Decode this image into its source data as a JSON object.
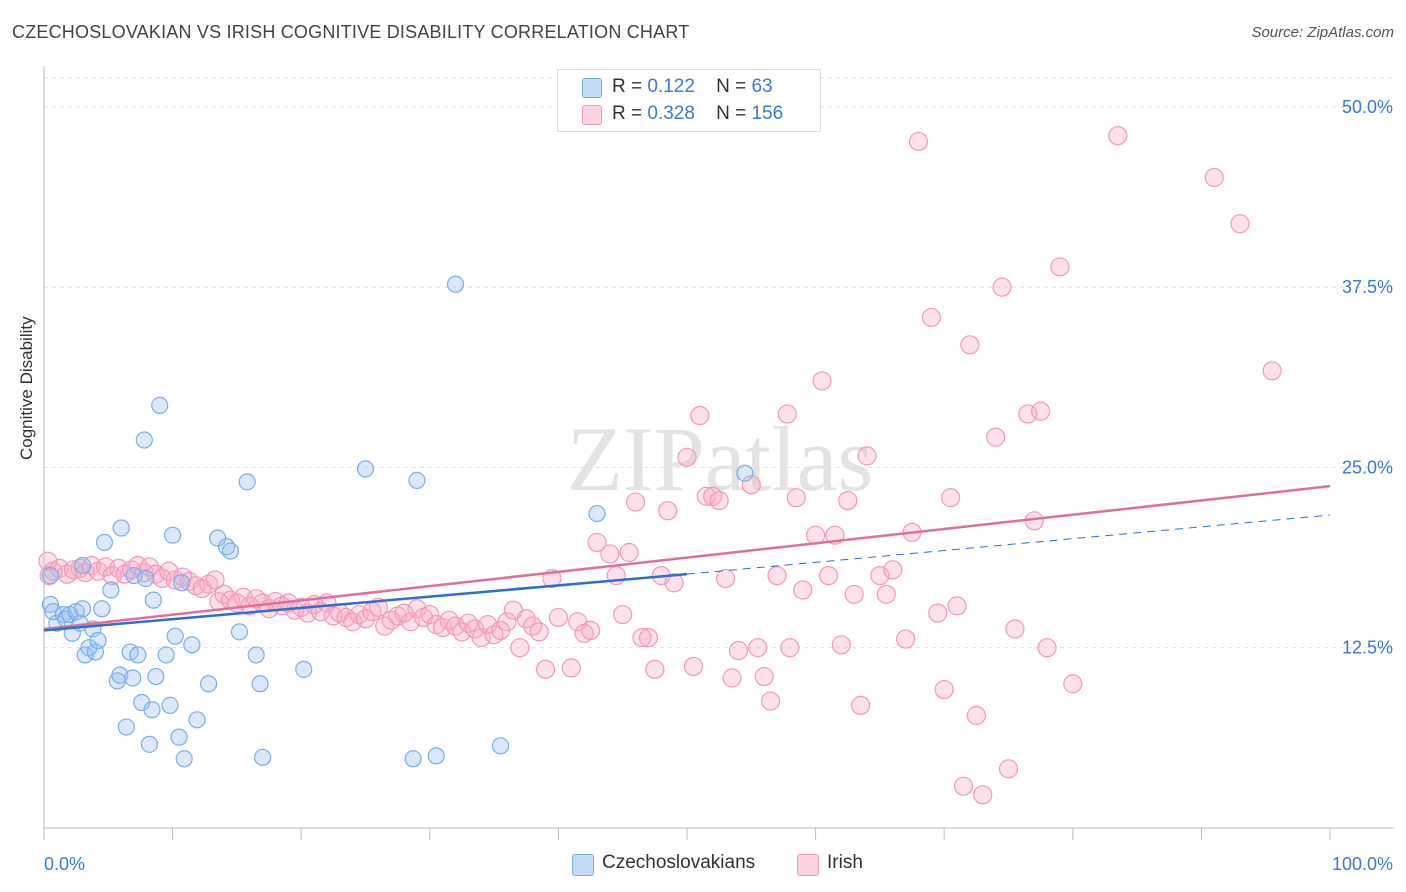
{
  "header": {
    "title": "CZECHOSLOVAKIAN VS IRISH COGNITIVE DISABILITY CORRELATION CHART",
    "source": "Source: ZipAtlas.com"
  },
  "watermark": "ZIPatlas",
  "legend": {
    "rows": [
      {
        "r_label": "R =",
        "r_value": "0.122",
        "n_label": "N =",
        "n_value": "63",
        "color": "#a8c8f0"
      },
      {
        "r_label": "R =",
        "r_value": "0.328",
        "n_label": "N =",
        "n_value": "156",
        "color": "#f5b8cc"
      }
    ]
  },
  "bottom_legend": [
    {
      "label": "Czechoslovakians",
      "color": "#a8c8f0"
    },
    {
      "label": "Irish",
      "color": "#f5b8cc"
    }
  ],
  "chart_data": {
    "type": "scatter",
    "title": "CZECHOSLOVAKIAN VS IRISH COGNITIVE DISABILITY CORRELATION CHART",
    "xlabel": "",
    "ylabel": "Cognitive Disability",
    "xlim": [
      0,
      100
    ],
    "ylim": [
      0,
      52
    ],
    "x_tick_labels": [
      "0.0%",
      "100.0%"
    ],
    "y_ticks": [
      12.5,
      25.0,
      37.5,
      50.0
    ],
    "y_tick_labels": [
      "12.5%",
      "25.0%",
      "37.5%",
      "50.0%"
    ],
    "grid": "horizontal dashed",
    "colors": {
      "czech": "#7aaee8",
      "irish": "#f09ab8",
      "czech_line": "#2f6fd0",
      "irish_line": "#e0709a",
      "tick_label": "#3a7bd5"
    },
    "series": [
      {
        "name": "Czechoslovakians",
        "points": [
          [
            0.5,
            17.5
          ],
          [
            0.5,
            15.5
          ],
          [
            0.7,
            15.0
          ],
          [
            1.0,
            14.2
          ],
          [
            1.5,
            14.8
          ],
          [
            1.7,
            14.5
          ],
          [
            2.0,
            14.8
          ],
          [
            2.2,
            13.5
          ],
          [
            2.5,
            15.0
          ],
          [
            2.8,
            14.2
          ],
          [
            3.0,
            15.2
          ],
          [
            3.2,
            12.0
          ],
          [
            3.5,
            12.5
          ],
          [
            3.8,
            13.8
          ],
          [
            4.0,
            12.2
          ],
          [
            4.2,
            13.0
          ],
          [
            4.5,
            15.2
          ],
          [
            4.7,
            19.8
          ],
          [
            5.2,
            16.5
          ],
          [
            5.7,
            10.2
          ],
          [
            5.9,
            10.6
          ],
          [
            6.0,
            20.8
          ],
          [
            6.4,
            7.0
          ],
          [
            6.7,
            12.2
          ],
          [
            6.9,
            10.4
          ],
          [
            7.0,
            17.5
          ],
          [
            7.3,
            12.0
          ],
          [
            7.6,
            8.7
          ],
          [
            7.9,
            17.3
          ],
          [
            8.2,
            5.8
          ],
          [
            8.4,
            8.2
          ],
          [
            8.5,
            15.8
          ],
          [
            8.7,
            10.5
          ],
          [
            9.0,
            29.3
          ],
          [
            9.5,
            12.0
          ],
          [
            9.8,
            8.5
          ],
          [
            10.0,
            20.3
          ],
          [
            10.2,
            13.3
          ],
          [
            10.5,
            6.3
          ],
          [
            10.7,
            17.0
          ],
          [
            10.9,
            4.8
          ],
          [
            11.5,
            12.7
          ],
          [
            11.9,
            7.5
          ],
          [
            12.8,
            10.0
          ],
          [
            13.5,
            20.1
          ],
          [
            14.2,
            19.5
          ],
          [
            14.5,
            19.2
          ],
          [
            15.2,
            13.6
          ],
          [
            15.8,
            24.0
          ],
          [
            16.5,
            12.0
          ],
          [
            16.8,
            10.0
          ],
          [
            17.0,
            4.9
          ],
          [
            20.2,
            11.0
          ],
          [
            7.8,
            26.9
          ],
          [
            25.0,
            24.9
          ],
          [
            28.7,
            4.8
          ],
          [
            29.0,
            24.1
          ],
          [
            30.5,
            5.0
          ],
          [
            32.0,
            37.7
          ],
          [
            35.5,
            5.7
          ],
          [
            43.0,
            21.8
          ],
          [
            54.5,
            24.6
          ],
          [
            3.0,
            18.2
          ]
        ],
        "trend": {
          "x0": 0,
          "y0": 13.7,
          "x1": 50,
          "y1": 17.6,
          "dashed_x1": 100,
          "dashed_y1": 21.7
        }
      },
      {
        "name": "Irish",
        "points": [
          [
            0.3,
            18.5
          ],
          [
            0.7,
            17.8
          ],
          [
            1.2,
            18.0
          ],
          [
            1.8,
            17.6
          ],
          [
            2.3,
            17.9
          ],
          [
            2.8,
            18.0
          ],
          [
            3.2,
            17.7
          ],
          [
            3.7,
            18.2
          ],
          [
            4.2,
            17.8
          ],
          [
            4.8,
            18.1
          ],
          [
            5.3,
            17.5
          ],
          [
            5.8,
            18.0
          ],
          [
            6.3,
            17.6
          ],
          [
            6.8,
            17.9
          ],
          [
            7.3,
            18.2
          ],
          [
            7.8,
            17.7
          ],
          [
            8.2,
            18.1
          ],
          [
            8.7,
            17.6
          ],
          [
            9.2,
            17.3
          ],
          [
            9.7,
            17.8
          ],
          [
            10.2,
            17.2
          ],
          [
            10.8,
            17.4
          ],
          [
            11.3,
            17.1
          ],
          [
            11.8,
            16.8
          ],
          [
            12.3,
            16.6
          ],
          [
            12.8,
            16.9
          ],
          [
            13.3,
            17.2
          ],
          [
            13.6,
            15.7
          ],
          [
            14.0,
            16.2
          ],
          [
            14.5,
            15.8
          ],
          [
            15.0,
            15.6
          ],
          [
            15.5,
            16.0
          ],
          [
            16.0,
            15.4
          ],
          [
            16.5,
            15.9
          ],
          [
            17.0,
            15.6
          ],
          [
            17.5,
            15.2
          ],
          [
            18.0,
            15.7
          ],
          [
            18.5,
            15.4
          ],
          [
            19.0,
            15.6
          ],
          [
            19.5,
            15.1
          ],
          [
            20.0,
            15.3
          ],
          [
            20.5,
            14.9
          ],
          [
            21.0,
            15.5
          ],
          [
            21.5,
            15.0
          ],
          [
            22.0,
            15.6
          ],
          [
            22.5,
            14.7
          ],
          [
            23.0,
            14.9
          ],
          [
            23.5,
            14.6
          ],
          [
            24.0,
            14.3
          ],
          [
            24.5,
            14.8
          ],
          [
            25.0,
            14.5
          ],
          [
            25.5,
            15.0
          ],
          [
            26.0,
            15.3
          ],
          [
            26.5,
            14.0
          ],
          [
            27.0,
            14.4
          ],
          [
            27.5,
            14.7
          ],
          [
            28.0,
            14.9
          ],
          [
            28.5,
            14.3
          ],
          [
            29.0,
            15.2
          ],
          [
            29.5,
            14.6
          ],
          [
            30.0,
            14.8
          ],
          [
            30.5,
            14.1
          ],
          [
            31.0,
            13.9
          ],
          [
            31.5,
            14.4
          ],
          [
            32.0,
            14.0
          ],
          [
            32.5,
            13.6
          ],
          [
            33.0,
            14.2
          ],
          [
            33.5,
            13.8
          ],
          [
            34.0,
            13.2
          ],
          [
            34.5,
            14.1
          ],
          [
            35.0,
            13.4
          ],
          [
            35.5,
            13.7
          ],
          [
            36.0,
            14.3
          ],
          [
            36.5,
            15.1
          ],
          [
            37.0,
            12.5
          ],
          [
            37.5,
            14.5
          ],
          [
            38.0,
            14.0
          ],
          [
            38.5,
            13.6
          ],
          [
            39.0,
            11.0
          ],
          [
            39.5,
            17.3
          ],
          [
            40.0,
            14.6
          ],
          [
            41.0,
            11.1
          ],
          [
            41.5,
            14.3
          ],
          [
            42.0,
            13.5
          ],
          [
            42.5,
            13.7
          ],
          [
            43.0,
            19.8
          ],
          [
            44.0,
            19.0
          ],
          [
            44.5,
            17.5
          ],
          [
            45.0,
            14.8
          ],
          [
            45.5,
            19.1
          ],
          [
            46.0,
            22.6
          ],
          [
            46.5,
            13.2
          ],
          [
            47.0,
            13.2
          ],
          [
            47.5,
            11.0
          ],
          [
            48.0,
            17.5
          ],
          [
            48.5,
            22.0
          ],
          [
            49.0,
            17.0
          ],
          [
            50.0,
            25.7
          ],
          [
            50.5,
            11.2
          ],
          [
            51.0,
            28.6
          ],
          [
            51.5,
            23.0
          ],
          [
            52.0,
            23.0
          ],
          [
            52.5,
            22.7
          ],
          [
            53.0,
            17.3
          ],
          [
            53.5,
            10.4
          ],
          [
            54.0,
            12.3
          ],
          [
            55.0,
            23.8
          ],
          [
            55.5,
            12.5
          ],
          [
            56.0,
            10.5
          ],
          [
            56.5,
            8.8
          ],
          [
            57.0,
            17.5
          ],
          [
            57.8,
            28.7
          ],
          [
            58.0,
            12.5
          ],
          [
            58.5,
            22.9
          ],
          [
            59.0,
            16.5
          ],
          [
            60.0,
            20.3
          ],
          [
            60.5,
            31.0
          ],
          [
            61.0,
            17.5
          ],
          [
            61.5,
            20.3
          ],
          [
            62.0,
            12.7
          ],
          [
            62.5,
            22.7
          ],
          [
            63.0,
            16.2
          ],
          [
            63.5,
            8.5
          ],
          [
            64.0,
            25.8
          ],
          [
            65.0,
            17.5
          ],
          [
            65.5,
            16.2
          ],
          [
            66.0,
            17.9
          ],
          [
            67.0,
            13.1
          ],
          [
            67.5,
            20.5
          ],
          [
            68.0,
            47.6
          ],
          [
            69.0,
            35.4
          ],
          [
            69.5,
            14.9
          ],
          [
            70.0,
            9.6
          ],
          [
            70.5,
            22.9
          ],
          [
            71.0,
            15.4
          ],
          [
            71.5,
            2.9
          ],
          [
            72.0,
            33.5
          ],
          [
            72.5,
            7.8
          ],
          [
            73.0,
            2.3
          ],
          [
            74.0,
            27.1
          ],
          [
            74.5,
            37.5
          ],
          [
            75.0,
            4.1
          ],
          [
            75.5,
            13.8
          ],
          [
            76.5,
            28.7
          ],
          [
            77.0,
            21.3
          ],
          [
            77.5,
            28.9
          ],
          [
            78.0,
            12.5
          ],
          [
            79.0,
            38.9
          ],
          [
            80.0,
            10.0
          ],
          [
            83.5,
            48.0
          ],
          [
            91.0,
            45.1
          ],
          [
            93.0,
            41.9
          ],
          [
            95.5,
            31.7
          ],
          [
            0.4,
            17.5
          ]
        ],
        "trend": {
          "x0": 0,
          "y0": 13.8,
          "x1": 100,
          "y1": 23.7
        }
      }
    ]
  }
}
